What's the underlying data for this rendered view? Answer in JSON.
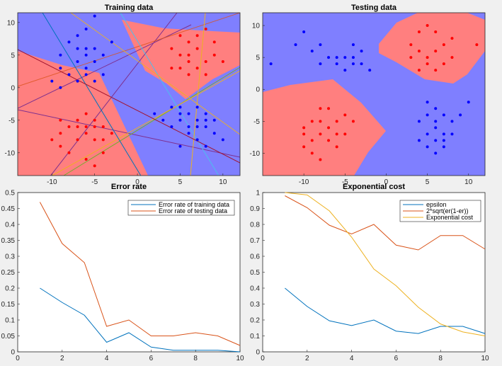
{
  "chart_data": [
    {
      "type": "scatter",
      "title": "Training data",
      "xlim": [
        -14,
        12
      ],
      "ylim": [
        -13.5,
        11.5
      ],
      "xticks": [
        -10,
        -5,
        0,
        5,
        10
      ],
      "yticks": [
        -10,
        -5,
        0,
        5,
        10
      ],
      "colors": {
        "region_a": "#7f7fff",
        "region_b": "#ff7f7f",
        "points_a": "#0000ff",
        "points_b": "#ff0000"
      },
      "series": [
        {
          "values": [
            [
              -5,
              11
            ],
            [
              -7,
              8
            ],
            [
              -5,
              6
            ],
            [
              -9,
              5
            ],
            [
              -6,
              5
            ],
            [
              -5,
              4
            ],
            [
              -7,
              4
            ],
            [
              -6,
              3
            ],
            [
              -8,
              2
            ],
            [
              -6,
              2
            ],
            [
              -4,
              2
            ],
            [
              -10,
              1
            ],
            [
              -7,
              1
            ],
            [
              -5,
              1
            ],
            [
              -9,
              0
            ],
            [
              -6,
              6
            ],
            [
              -4,
              5
            ],
            [
              -3,
              7
            ],
            [
              -8,
              7
            ],
            [
              -6,
              9
            ],
            [
              -7,
              6
            ],
            [
              -9,
              3
            ],
            [
              2,
              -4
            ],
            [
              4,
              -3
            ],
            [
              5,
              -5
            ],
            [
              7,
              -5
            ],
            [
              8,
              -6
            ],
            [
              6,
              -7
            ],
            [
              5,
              -4
            ],
            [
              9,
              -5
            ],
            [
              7,
              -8
            ],
            [
              8,
              -9
            ],
            [
              4,
              -6
            ],
            [
              6,
              -4
            ],
            [
              8,
              -4
            ],
            [
              5,
              -9
            ],
            [
              10,
              -8
            ],
            [
              7,
              -3
            ],
            [
              3,
              -5
            ],
            [
              9,
              -7
            ],
            [
              6,
              -6
            ],
            [
              8,
              -5
            ],
            [
              7,
              -6
            ],
            [
              5,
              -3
            ]
          ]
        },
        {
          "values": [
            [
              5,
              8
            ],
            [
              6,
              7
            ],
            [
              8,
              9
            ],
            [
              7,
              6
            ],
            [
              5,
              5
            ],
            [
              6,
              4
            ],
            [
              8,
              4
            ],
            [
              7,
              3
            ],
            [
              5,
              3
            ],
            [
              9,
              5
            ],
            [
              6,
              2
            ],
            [
              8,
              2
            ],
            [
              4,
              6
            ],
            [
              7,
              8
            ],
            [
              6,
              5
            ],
            [
              9,
              7
            ],
            [
              4,
              3
            ],
            [
              10,
              4
            ],
            [
              -9,
              -5
            ],
            [
              -7,
              -5
            ],
            [
              -8,
              -6
            ],
            [
              -6,
              -6
            ],
            [
              -5,
              -5
            ],
            [
              -4,
              -6
            ],
            [
              -6,
              -7
            ],
            [
              -9,
              -7
            ],
            [
              -7,
              -8
            ],
            [
              -5,
              -8
            ],
            [
              -8,
              -10
            ],
            [
              -6,
              -11
            ],
            [
              -4,
              -10
            ],
            [
              -3,
              -7
            ],
            [
              -5,
              -12
            ],
            [
              -10,
              -8
            ],
            [
              -6,
              -4
            ],
            [
              -7,
              -6
            ],
            [
              -9,
              -9
            ],
            [
              -4,
              -8
            ],
            [
              -5,
              -6
            ]
          ]
        }
      ]
    },
    {
      "type": "scatter",
      "title": "Testing data",
      "xlim": [
        -15,
        12
      ],
      "ylim": [
        -13.5,
        12
      ],
      "xticks": [
        -10,
        -5,
        0,
        5,
        10
      ],
      "yticks": [
        -10,
        -5,
        0,
        5,
        10
      ],
      "colors": {
        "region_a": "#7f7fff",
        "region_b": "#ff7f7f",
        "points_a": "#0000ff",
        "points_b": "#ff0000"
      },
      "series": [
        {
          "values": [
            [
              -14,
              4
            ],
            [
              -11,
              7
            ],
            [
              -10,
              9
            ],
            [
              -8,
              7
            ],
            [
              -9,
              6
            ],
            [
              -7,
              5
            ],
            [
              -5,
              5
            ],
            [
              -4,
              7
            ],
            [
              -6,
              4
            ],
            [
              -3,
              6
            ],
            [
              -8,
              4
            ],
            [
              -5,
              3
            ],
            [
              -4,
              4
            ],
            [
              -2,
              3
            ],
            [
              -6,
              5
            ],
            [
              -3,
              4
            ],
            [
              -4,
              5
            ],
            [
              5,
              -2
            ],
            [
              6,
              -3
            ],
            [
              5,
              -4
            ],
            [
              7,
              -4
            ],
            [
              4,
              -5
            ],
            [
              6,
              -5
            ],
            [
              8,
              -5
            ],
            [
              5,
              -7
            ],
            [
              7,
              -7
            ],
            [
              4,
              -8
            ],
            [
              6,
              -8
            ],
            [
              5,
              -9
            ],
            [
              7,
              -9
            ],
            [
              8,
              -7
            ],
            [
              10,
              -2
            ],
            [
              9,
              -4
            ],
            [
              6,
              -6
            ],
            [
              7,
              -8
            ],
            [
              6,
              -10
            ]
          ]
        },
        {
          "values": [
            [
              4,
              9
            ],
            [
              5,
              10
            ],
            [
              3,
              7
            ],
            [
              4,
              6
            ],
            [
              5,
              5
            ],
            [
              6,
              6
            ],
            [
              7,
              7
            ],
            [
              8,
              8
            ],
            [
              3,
              5
            ],
            [
              5,
              4
            ],
            [
              7,
              4
            ],
            [
              6,
              3
            ],
            [
              4,
              3
            ],
            [
              8,
              5
            ],
            [
              11,
              7
            ],
            [
              6,
              9
            ],
            [
              -10,
              -6
            ],
            [
              -9,
              -5
            ],
            [
              -8,
              -5
            ],
            [
              -7,
              -6
            ],
            [
              -6,
              -5
            ],
            [
              -5,
              -7
            ],
            [
              -9,
              -8
            ],
            [
              -8,
              -7
            ],
            [
              -7,
              -8
            ],
            [
              -6,
              -7
            ],
            [
              -5,
              -4
            ],
            [
              -4,
              -5
            ],
            [
              -10,
              -9
            ],
            [
              -9,
              -10
            ],
            [
              -8,
              -11
            ],
            [
              -6,
              -9
            ],
            [
              -7,
              -3
            ],
            [
              -8,
              -3
            ],
            [
              -10,
              -7
            ]
          ]
        }
      ]
    },
    {
      "type": "line",
      "title": "Error rate",
      "xlim": [
        0,
        10
      ],
      "ylim": [
        0,
        0.5
      ],
      "xticks": [
        0,
        2,
        4,
        6,
        8,
        10
      ],
      "yticks": [
        0,
        0.05,
        0.1,
        0.15,
        0.2,
        0.25,
        0.3,
        0.35,
        0.4,
        0.45,
        0.5
      ],
      "legend_position": "top-right",
      "x": [
        1,
        2,
        3,
        4,
        5,
        6,
        7,
        8,
        9,
        10
      ],
      "series": [
        {
          "name": "Error rate of training data",
          "color": "#0072bd",
          "values": [
            0.2,
            0.155,
            0.115,
            0.03,
            0.06,
            0.015,
            0.005,
            0.005,
            0.005,
            0.0
          ]
        },
        {
          "name": "Error rate of testing data",
          "color": "#d95319",
          "values": [
            0.47,
            0.34,
            0.28,
            0.08,
            0.1,
            0.05,
            0.05,
            0.06,
            0.05,
            0.02
          ]
        }
      ]
    },
    {
      "type": "line",
      "title": "Exponential cost",
      "xlim": [
        0,
        10
      ],
      "ylim": [
        0,
        1
      ],
      "xticks": [
        0,
        2,
        4,
        6,
        8,
        10
      ],
      "yticks": [
        0,
        0.1,
        0.2,
        0.3,
        0.4,
        0.5,
        0.6,
        0.7,
        0.8,
        0.9,
        1
      ],
      "legend_position": "top-right",
      "x": [
        1,
        2,
        3,
        4,
        5,
        6,
        7,
        8,
        9,
        10
      ],
      "series": [
        {
          "name": "epsilon",
          "color": "#0072bd",
          "values": [
            0.4,
            0.285,
            0.195,
            0.165,
            0.2,
            0.13,
            0.115,
            0.16,
            0.16,
            0.115
          ]
        },
        {
          "name": "2*sqrt(er(1-er))",
          "color": "#d95319",
          "values": [
            0.98,
            0.905,
            0.795,
            0.74,
            0.8,
            0.67,
            0.64,
            0.73,
            0.73,
            0.645
          ]
        },
        {
          "name": "Exponential cost",
          "color": "#edb120",
          "values": [
            1.0,
            0.985,
            0.885,
            0.72,
            0.52,
            0.415,
            0.28,
            0.175,
            0.125,
            0.1
          ]
        }
      ]
    }
  ]
}
